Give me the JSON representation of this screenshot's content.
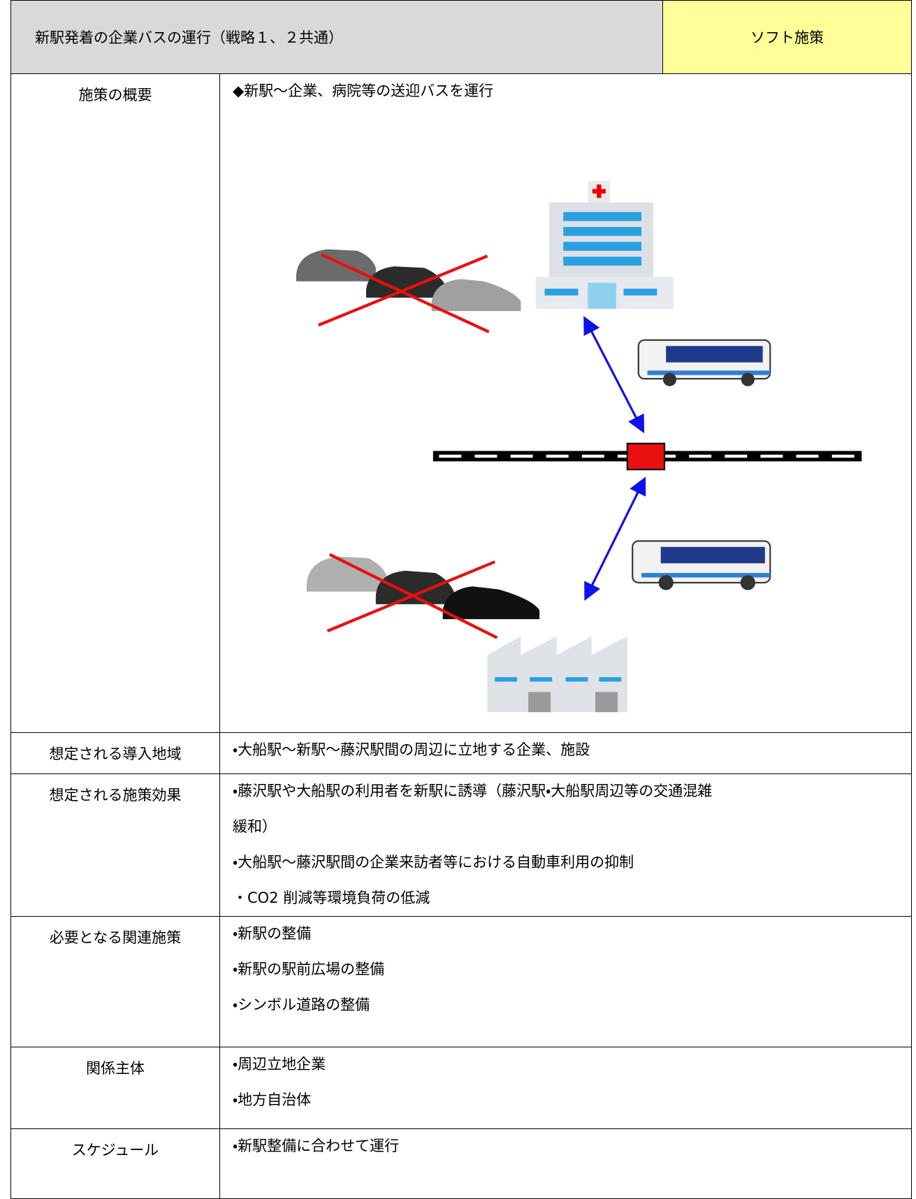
{
  "header": {
    "title": "新駅発着の企業バスの運行（戦略１、２共通）",
    "tag": "ソフト施策"
  },
  "rows": [
    {
      "label": "施策の概要",
      "items": [
        "◆新駅～企業、病院等の送迎バスを運行"
      ]
    },
    {
      "label": "想定される導入地域",
      "items": [
        "・大船駅～新駅～藤沢駅間の周辺に立地する企業、施設"
      ]
    },
    {
      "label": "想定される施策効果",
      "items": [
        "・藤沢駅や大船駅の利用者を新駅に誘導（藤沢駅・大船駅周辺等の交通混雑",
        "緩和）",
        "・大船駅～藤沢駅間の企業来訪者等における自動車利用の抑制",
        "・CO2 削減等環境負荷の低減"
      ]
    },
    {
      "label": "必要となる関連施策",
      "items": [
        "・新駅の整備",
        "・新駅の駅前広場の整備",
        "・シンボル道路の整備"
      ]
    },
    {
      "label": "関係主体",
      "items": [
        "・周辺立地企業",
        "・地方自治体"
      ]
    },
    {
      "label": "スケジュール",
      "items": [
        "・新駅整備に合わせて運行"
      ]
    }
  ]
}
